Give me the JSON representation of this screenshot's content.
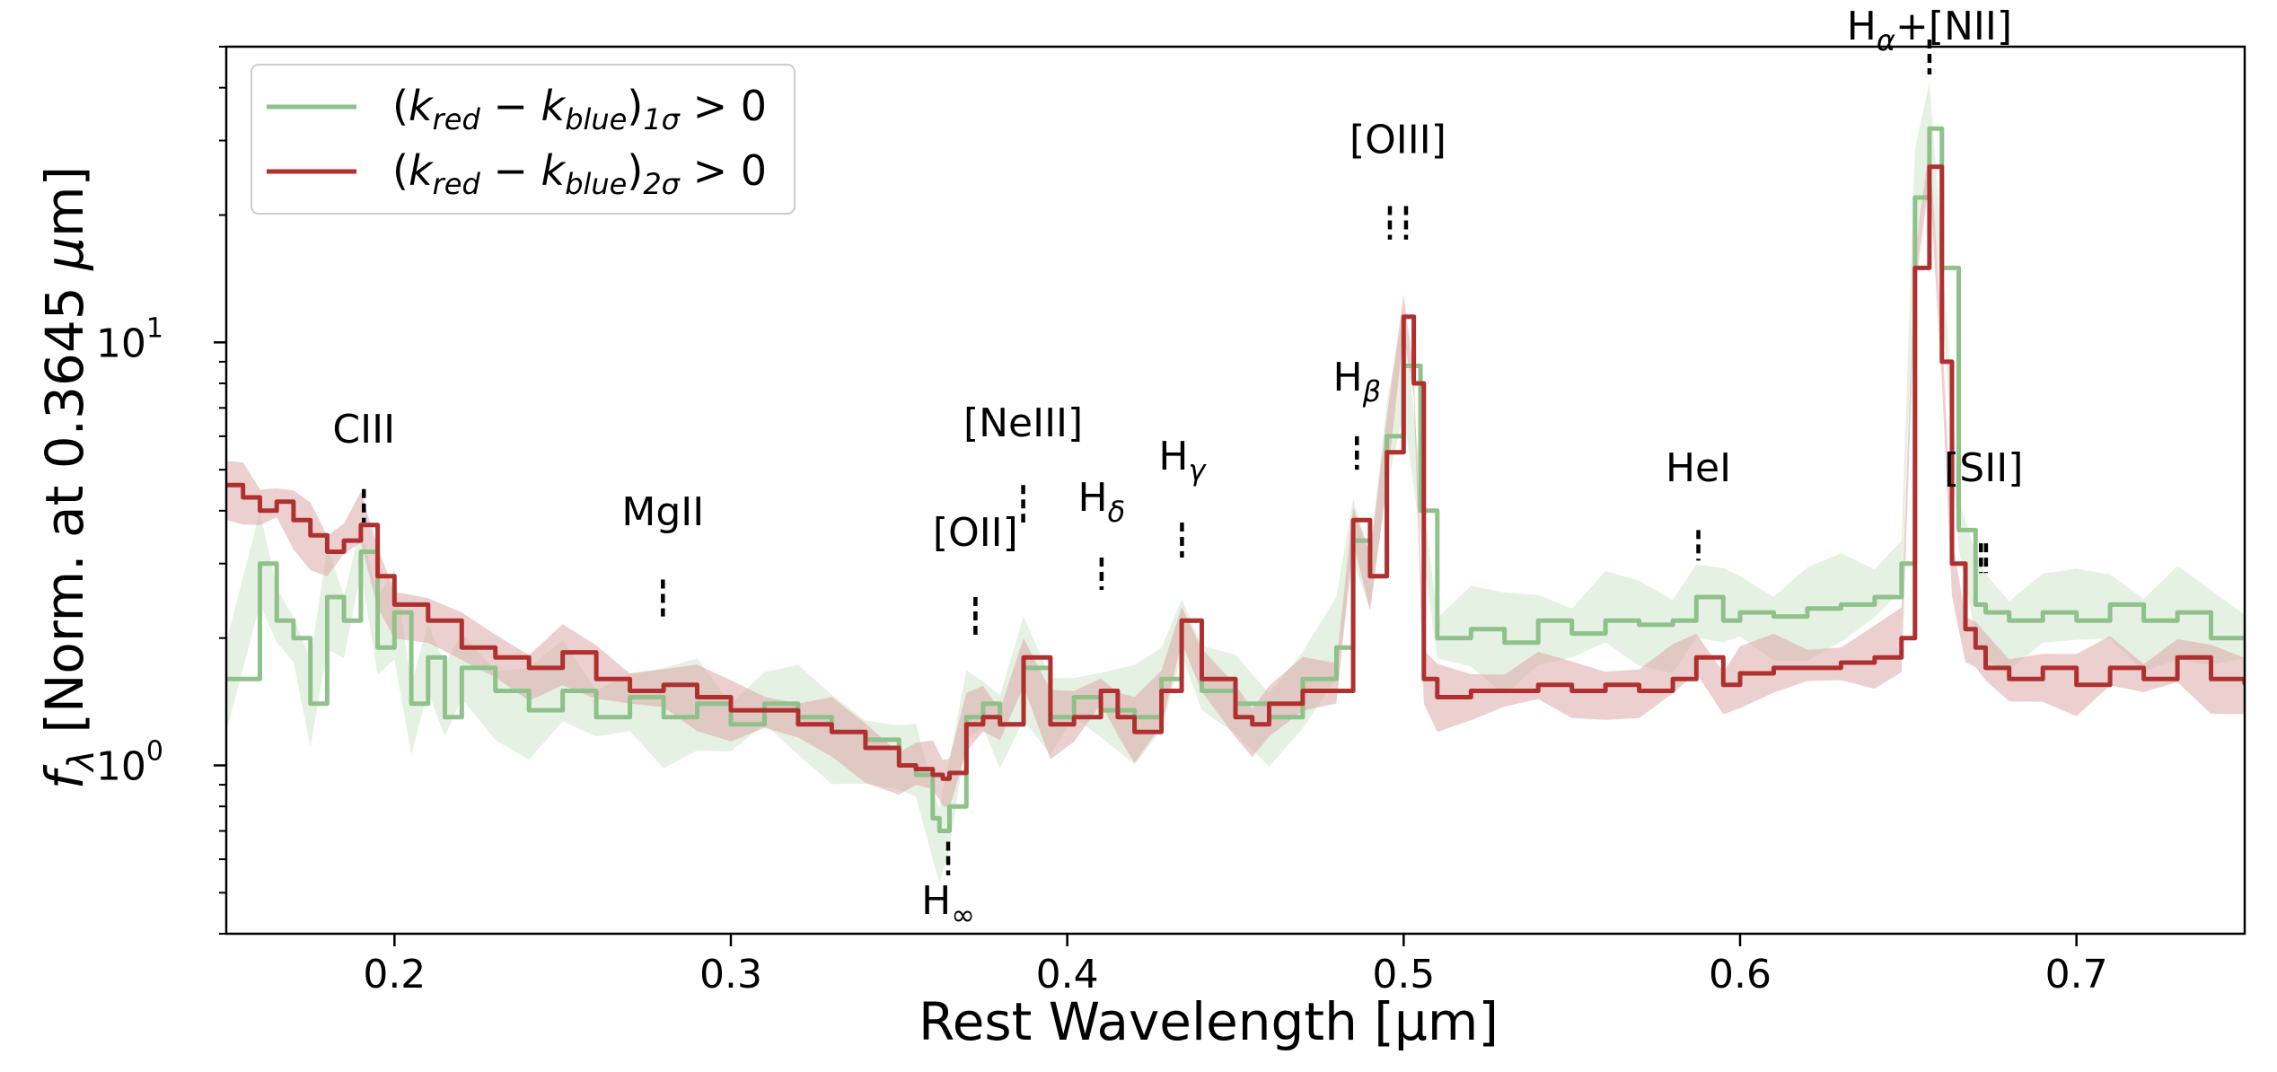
{
  "chart_data": {
    "type": "line",
    "title": "",
    "xlabel": "Rest Wavelength [μm]",
    "ylabel": "f_λ [Norm. at 0.3645 μm]",
    "xlim": [
      0.15,
      0.75
    ],
    "ylim": [
      0.4,
      50
    ],
    "yscale": "log",
    "grid": false,
    "legend_position": "top-left",
    "x_ticks": [
      0.2,
      0.3,
      0.4,
      0.5,
      0.6,
      0.7
    ],
    "x_tick_labels": [
      "0.2",
      "0.3",
      "0.4",
      "0.5",
      "0.6",
      "0.7"
    ],
    "y_ticks": [
      1,
      10
    ],
    "y_tick_labels": [
      {
        "base": "10",
        "exp": "0"
      },
      {
        "base": "10",
        "exp": "1"
      }
    ],
    "series": [
      {
        "name": "(k_red − k_blue)_1σ > 0",
        "legend": {
          "pre": "(",
          "k1": "k",
          "s1": "red",
          "minus": " − ",
          "k2": "k",
          "s2": "blue",
          "close": ")",
          "s3": "1σ",
          "post": " > 0"
        },
        "color": "#8fc18b",
        "band_color": "#cfe6cb",
        "x": [
          0.15,
          0.16,
          0.165,
          0.17,
          0.175,
          0.18,
          0.185,
          0.19,
          0.195,
          0.2,
          0.205,
          0.21,
          0.215,
          0.22,
          0.23,
          0.24,
          0.25,
          0.26,
          0.27,
          0.28,
          0.29,
          0.3,
          0.31,
          0.32,
          0.33,
          0.34,
          0.35,
          0.355,
          0.36,
          0.362,
          0.365,
          0.37,
          0.375,
          0.38,
          0.387,
          0.395,
          0.402,
          0.41,
          0.42,
          0.428,
          0.434,
          0.44,
          0.45,
          0.46,
          0.47,
          0.48,
          0.485,
          0.49,
          0.495,
          0.5,
          0.505,
          0.51,
          0.52,
          0.53,
          0.54,
          0.55,
          0.56,
          0.57,
          0.58,
          0.587,
          0.595,
          0.6,
          0.61,
          0.62,
          0.63,
          0.64,
          0.648,
          0.652,
          0.6563,
          0.66,
          0.665,
          0.67,
          0.673,
          0.68,
          0.69,
          0.7,
          0.71,
          0.72,
          0.73,
          0.74,
          0.75
        ],
        "y": [
          1.6,
          3.0,
          2.2,
          2.0,
          1.4,
          2.5,
          2.2,
          3.2,
          1.9,
          2.3,
          1.4,
          1.8,
          1.3,
          1.7,
          1.5,
          1.35,
          1.5,
          1.3,
          1.45,
          1.3,
          1.4,
          1.25,
          1.4,
          1.3,
          1.2,
          1.15,
          1.0,
          0.95,
          0.75,
          0.7,
          0.8,
          1.3,
          1.4,
          1.25,
          1.7,
          1.3,
          1.45,
          1.35,
          1.3,
          1.6,
          2.2,
          1.5,
          1.4,
          1.3,
          1.6,
          1.9,
          3.4,
          2.8,
          6.0,
          8.8,
          4.0,
          2.0,
          2.1,
          1.95,
          2.2,
          2.05,
          2.2,
          2.15,
          2.2,
          2.5,
          2.2,
          2.3,
          2.25,
          2.35,
          2.4,
          2.5,
          3.0,
          22.0,
          32.0,
          15.0,
          3.6,
          2.4,
          2.3,
          2.2,
          2.3,
          2.2,
          2.4,
          2.2,
          2.3,
          2.0,
          2.0
        ]
      },
      {
        "name": "(k_red − k_blue)_2σ > 0",
        "legend": {
          "pre": "(",
          "k1": "k",
          "s1": "red",
          "minus": " − ",
          "k2": "k",
          "s2": "blue",
          "close": ")",
          "s3": "2σ",
          "post": " > 0"
        },
        "color": "#b03030",
        "band_color": "#dca8a8",
        "x": [
          0.15,
          0.155,
          0.16,
          0.165,
          0.17,
          0.175,
          0.18,
          0.185,
          0.19,
          0.195,
          0.2,
          0.21,
          0.22,
          0.23,
          0.24,
          0.25,
          0.26,
          0.27,
          0.28,
          0.29,
          0.3,
          0.31,
          0.32,
          0.33,
          0.34,
          0.35,
          0.355,
          0.36,
          0.363,
          0.365,
          0.37,
          0.375,
          0.38,
          0.387,
          0.395,
          0.402,
          0.41,
          0.415,
          0.42,
          0.428,
          0.434,
          0.44,
          0.45,
          0.455,
          0.46,
          0.47,
          0.48,
          0.485,
          0.49,
          0.495,
          0.5,
          0.503,
          0.506,
          0.51,
          0.52,
          0.53,
          0.54,
          0.55,
          0.56,
          0.57,
          0.58,
          0.587,
          0.595,
          0.6,
          0.61,
          0.62,
          0.63,
          0.64,
          0.648,
          0.652,
          0.6563,
          0.66,
          0.663,
          0.667,
          0.67,
          0.673,
          0.68,
          0.69,
          0.7,
          0.71,
          0.72,
          0.73,
          0.74,
          0.75
        ],
        "y": [
          4.6,
          4.3,
          4.0,
          4.2,
          3.8,
          3.5,
          3.2,
          3.4,
          3.7,
          2.8,
          2.4,
          2.2,
          1.9,
          1.8,
          1.7,
          1.85,
          1.6,
          1.5,
          1.55,
          1.45,
          1.35,
          1.35,
          1.25,
          1.2,
          1.1,
          1.0,
          0.98,
          0.95,
          0.93,
          0.96,
          1.25,
          1.3,
          1.25,
          1.8,
          1.25,
          1.3,
          1.5,
          1.3,
          1.2,
          1.5,
          2.2,
          1.6,
          1.3,
          1.25,
          1.4,
          1.5,
          1.5,
          3.8,
          2.8,
          5.5,
          11.5,
          8.0,
          1.6,
          1.45,
          1.5,
          1.5,
          1.55,
          1.5,
          1.55,
          1.5,
          1.6,
          1.8,
          1.55,
          1.65,
          1.7,
          1.7,
          1.75,
          1.8,
          2.0,
          15.0,
          26.0,
          9.0,
          3.0,
          2.1,
          1.9,
          1.7,
          1.6,
          1.7,
          1.55,
          1.7,
          1.6,
          1.8,
          1.6,
          1.55
        ]
      }
    ],
    "annotations": [
      {
        "label": "CIII",
        "x": 0.1909,
        "y_top": 4.5,
        "y_bot": 3.75
      },
      {
        "label": "MgII",
        "x": 0.2798,
        "y_top": 2.75,
        "y_bot": 2.25
      },
      {
        "label": "[OII]",
        "x": 0.3727,
        "y_top": 2.5,
        "y_bot": 2.0
      },
      {
        "label": "H∞",
        "x": 0.3646,
        "y_top": 0.66,
        "y_bot": 0.55
      },
      {
        "label": "[NeIII]",
        "x": 0.3869,
        "y_top": 4.6,
        "y_bot": 3.75
      },
      {
        "label": "Hδ",
        "x": 0.4102,
        "y_top": 3.1,
        "y_bot": 2.6
      },
      {
        "label": "Hγ",
        "x": 0.4341,
        "y_top": 3.75,
        "y_bot": 3.1
      },
      {
        "label": "Hβ",
        "x": 0.4861,
        "y_top": 6.0,
        "y_bot": 5.0
      },
      {
        "label": "[OIII]",
        "x": 0.4959,
        "y_top": 21.0,
        "y_bot": 17.5
      },
      {
        "label": "[OIII]",
        "x": 0.5007,
        "y_top": 21.0,
        "y_bot": 17.5
      },
      {
        "label": "HeI",
        "x": 0.5876,
        "y_top": 3.6,
        "y_bot": 3.05
      },
      {
        "label": "Hα+[NII]",
        "x": 0.6563,
        "y_top": 52.0,
        "y_bot": 43.0
      },
      {
        "label": "[SII]",
        "x": 0.6716,
        "y_top": 3.35,
        "y_bot": 2.85
      },
      {
        "label": "[SII]",
        "x": 0.6731,
        "y_top": 3.35,
        "y_bot": 2.85
      }
    ],
    "annotation_texts": [
      {
        "text": "CIII",
        "x": 0.1909,
        "y": 5.8
      },
      {
        "text": "MgII",
        "x": 0.2798,
        "y": 3.7
      },
      {
        "text": "[OII]",
        "x": 0.3727,
        "y": 3.3
      },
      {
        "text": "[NeIII]",
        "x": 0.3869,
        "y": 6.0
      },
      {
        "text": "[OIII]",
        "x": 0.4983,
        "y": 28.0
      },
      {
        "text": "HeI",
        "x": 0.5876,
        "y": 4.7
      },
      {
        "text": "[SII]",
        "x": 0.6724,
        "y": 4.7
      }
    ],
    "annotation_subtexts": [
      {
        "base": "H",
        "sub": "∞",
        "x": 0.3646,
        "y": 0.445
      },
      {
        "base": "H",
        "sub": "δ",
        "x": 0.4102,
        "y": 4.0
      },
      {
        "base": "H",
        "sub": "γ",
        "x": 0.4341,
        "y": 5.0
      },
      {
        "base": "H",
        "sub": "β",
        "x": 0.4861,
        "y": 7.7
      },
      {
        "base": "H",
        "sub": "α",
        "post": "+[NII]",
        "x": 0.6563,
        "y": 52.0
      }
    ]
  }
}
